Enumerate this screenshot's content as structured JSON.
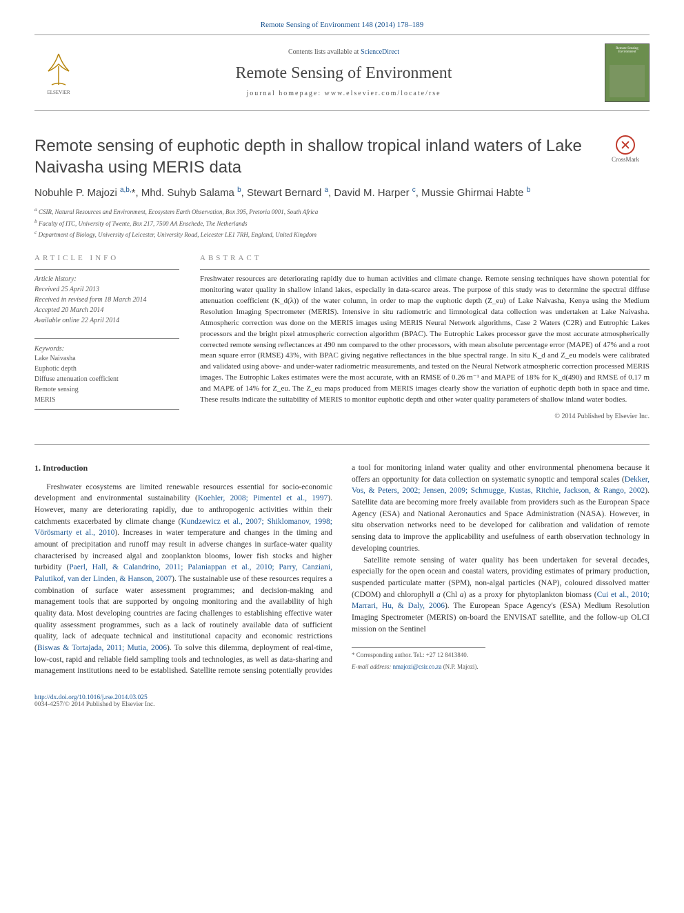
{
  "journal_ref": {
    "journal": "Remote Sensing of Environment",
    "citation": "148 (2014) 178–189"
  },
  "header": {
    "contents_prefix": "Contents lists available at ",
    "contents_link": "ScienceDirect",
    "journal_name": "Remote Sensing of Environment",
    "homepage_label": "journal homepage: ",
    "homepage_url": "www.elsevier.com/locate/rse",
    "cover_label": "Remote Sensing Environment"
  },
  "crossmark": "CrossMark",
  "title": "Remote sensing of euphotic depth in shallow tropical inland waters of Lake Naivasha using MERIS data",
  "authors_html": "Nobuhle P. Majozi <sup>a,b,</sup>*, Mhd. Suhyb Salama <sup>b</sup>, Stewart Bernard <sup>a</sup>, David M. Harper <sup>c</sup>, Mussie Ghirmai Habte <sup>b</sup>",
  "affiliations": [
    "a CSIR, Natural Resources and Environment, Ecosystem Earth Observation, Box 395, Pretoria 0001, South Africa",
    "b Faculty of ITC, University of Twente, Box 217, 7500 AA Enschede, The Netherlands",
    "c Department of Biology, University of Leicester, University Road, Leicester LE1 7RH, England, United Kingdom"
  ],
  "article_info_label": "article info",
  "abstract_label": "abstract",
  "history_label": "Article history:",
  "history": [
    "Received 25 April 2013",
    "Received in revised form 18 March 2014",
    "Accepted 20 March 2014",
    "Available online 22 April 2014"
  ],
  "keywords_label": "Keywords:",
  "keywords": [
    "Lake Naivasha",
    "Euphotic depth",
    "Diffuse attenuation coefficient",
    "Remote sensing",
    "MERIS"
  ],
  "abstract": "Freshwater resources are deteriorating rapidly due to human activities and climate change. Remote sensing techniques have shown potential for monitoring water quality in shallow inland lakes, especially in data-scarce areas. The purpose of this study was to determine the spectral diffuse attenuation coefficient (K_d(λ)) of the water column, in order to map the euphotic depth (Z_eu) of Lake Naivasha, Kenya using the Medium Resolution Imaging Spectrometer (MERIS). Intensive in situ radiometric and limnological data collection was undertaken at Lake Naivasha. Atmospheric correction was done on the MERIS images using MERIS Neural Network algorithms, Case 2 Waters (C2R) and Eutrophic Lakes processors and the bright pixel atmospheric correction algorithm (BPAC). The Eutrophic Lakes processor gave the most accurate atmospherically corrected remote sensing reflectances at 490 nm compared to the other processors, with mean absolute percentage error (MAPE) of 47% and a root mean square error (RMSE) 43%, with BPAC giving negative reflectances in the blue spectral range. In situ K_d and Z_eu models were calibrated and validated using above- and under-water radiometric measurements, and tested on the Neural Network atmospheric correction processed MERIS images. The Eutrophic Lakes estimates were the most accurate, with an RMSE of 0.26 m⁻¹ and MAPE of 18% for K_d(490) and RMSE of 0.17 m and MAPE of 14% for Z_eu. The Z_eu maps produced from MERIS images clearly show the variation of euphotic depth both in space and time. These results indicate the suitability of MERIS to monitor euphotic depth and other water quality parameters of shallow inland water bodies.",
  "copyright": "© 2014 Published by Elsevier Inc.",
  "body_heading": "1. Introduction",
  "body_p1_pre": "Freshwater ecosystems are limited renewable resources essential for socio-economic development and environmental sustainability (",
  "body_p1_link1": "Koehler, 2008; Pimentel et al., 1997",
  "body_p1_mid1": "). However, many are deteriorating rapidly, due to anthropogenic activities within their catchments exacerbated by climate change (",
  "body_p1_link2": "Kundzewicz et al., 2007; Shiklomanov, 1998; Vörösmarty et al., 2010",
  "body_p1_mid2": "). Increases in water temperature and changes in the timing and amount of precipitation and runoff may result in adverse changes in surface-water quality characterised by increased algal and zooplankton blooms, lower fish stocks and higher turbidity (",
  "body_p1_link3": "Paerl, Hall, & Calandrino, 2011; Palaniappan et al., 2010; Parry, Canziani, Palutikof, van der Linden, & Hanson, 2007",
  "body_p1_mid3": "). The sustainable use of these resources requires a combination of surface water assessment programmes; and decision-making and management tools that are supported by ongoing monitoring and the availability of high quality data. Most developing countries are facing challenges to establishing effective water quality assessment programmes, such as a lack of routinely available data of sufficient quality, lack of adequate technical and institutional capacity and economic restrictions (",
  "body_p1_link4": "Biswas & Tortajada, 2011; Mutia, 2006",
  "body_p1_mid4": "). To solve this dilemma, deployment of real-time, low-cost, rapid and reliable field sampling tools and technologies, as well as data-sharing and management institutions need to be established. Satellite remote sensing potentially provides a tool for monitoring inland water quality and other environmental phenomena because it offers an opportunity for data collection on systematic synoptic and temporal scales (",
  "body_p1_link5": "Dekker, Vos, & Peters, 2002; Jensen, 2009; Schmugge, Kustas, Ritchie, Jackson, & Rango, 2002",
  "body_p1_end": "). Satellite data are becoming more freely available from providers such as the European Space Agency (ESA) and National Aeronautics and Space Administration (NASA). However, in situ observation networks need to be developed for calibration and validation of remote sensing data to improve the applicability and usefulness of earth observation technology in developing countries.",
  "body_p2_pre": "Satellite remote sensing of water quality has been undertaken for several decades, especially for the open ocean and coastal waters, providing estimates of primary production, suspended particulate matter (SPM), non-algal particles (NAP), coloured dissolved matter (CDOM) and chlorophyll ",
  "body_p2_em1": "a",
  "body_p2_mid1": " (Chl ",
  "body_p2_em2": "a",
  "body_p2_mid2": ") as a proxy for phytoplankton biomass (",
  "body_p2_link1": "Cui et al., 2010; Marrari, Hu, & Daly, 2006",
  "body_p2_end": "). The European Space Agency's (ESA) Medium Resolution Imaging Spectrometer (MERIS) on-board the ENVISAT satellite, and the follow-up OLCI mission on the Sentinel",
  "footnote_corr": "* Corresponding author. Tel.: +27 12 8413840.",
  "footnote_email_label": "E-mail address: ",
  "footnote_email": "nmajozi@csir.co.za",
  "footnote_email_suffix": " (N.P. Majozi).",
  "footer_doi": "http://dx.doi.org/10.1016/j.rse.2014.03.025",
  "footer_issn_copy": "0034-4257/© 2014 Published by Elsevier Inc."
}
